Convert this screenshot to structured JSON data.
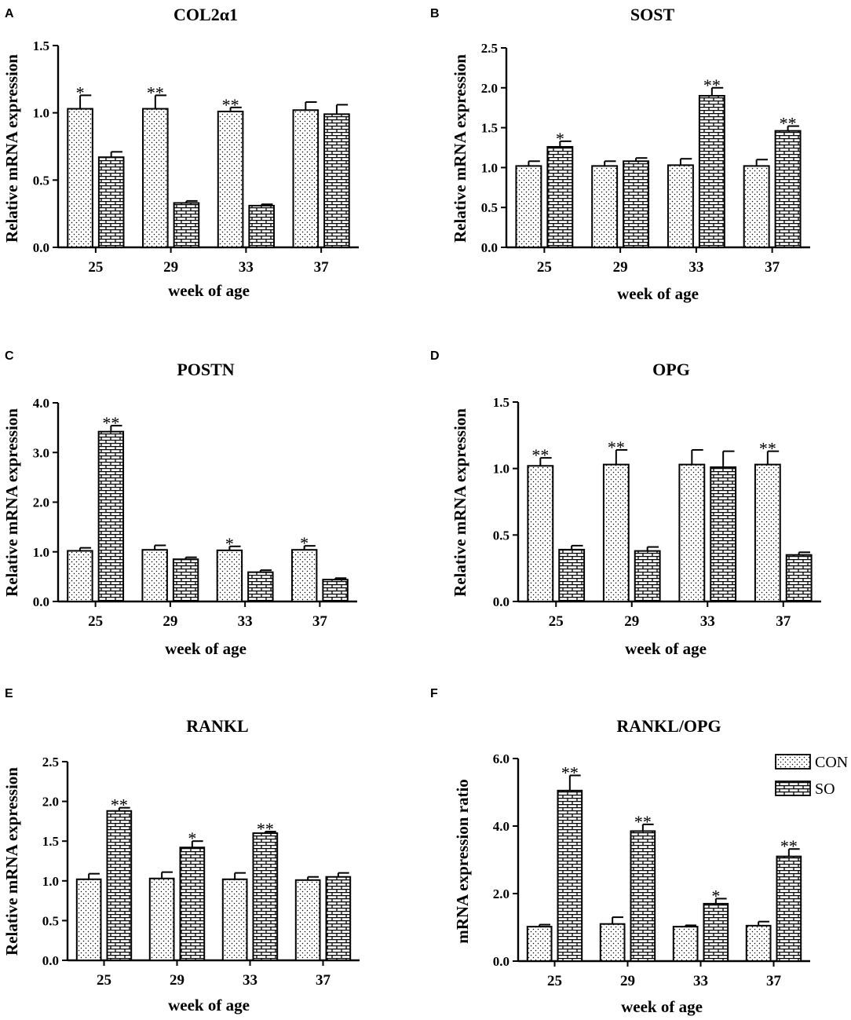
{
  "figure": {
    "legend": [
      {
        "key": "CON",
        "label": "CON",
        "pattern": "dots"
      },
      {
        "key": "SO",
        "label": "SO",
        "pattern": "bricks"
      }
    ],
    "colors": {
      "ink": "#000000",
      "bar_fill": "#ffffff"
    }
  },
  "chart_data": [
    {
      "panel": "A",
      "type": "bar",
      "title": "COL2α1",
      "xlabel": "week of age",
      "ylabel": "Relative mRNA expression",
      "categories": [
        "25",
        "29",
        "33",
        "37"
      ],
      "ylim": [
        0,
        1.5
      ],
      "yticks": [
        0,
        0.5,
        1.0,
        1.5
      ],
      "ytick_labels": [
        "0.0",
        "0.5",
        "1.0",
        "1.5"
      ],
      "series": [
        {
          "name": "CON",
          "values": [
            1.03,
            1.03,
            1.01,
            1.02
          ],
          "errors": [
            0.1,
            0.1,
            0.03,
            0.06
          ]
        },
        {
          "name": "SO",
          "values": [
            0.67,
            0.33,
            0.31,
            0.99
          ],
          "errors": [
            0.04,
            0.015,
            0.01,
            0.07
          ]
        }
      ],
      "significance": [
        "*",
        "**",
        "**",
        ""
      ]
    },
    {
      "panel": "B",
      "type": "bar",
      "title": "SOST",
      "xlabel": "week of age",
      "ylabel": "Relative mRNA expression",
      "categories": [
        "25",
        "29",
        "33",
        "37"
      ],
      "ylim": [
        0,
        2.5
      ],
      "yticks": [
        0,
        0.5,
        1.0,
        1.5,
        2.0,
        2.5
      ],
      "ytick_labels": [
        "0.0",
        "0.5",
        "1.0",
        "1.5",
        "2.0",
        "2.5"
      ],
      "series": [
        {
          "name": "CON",
          "values": [
            1.02,
            1.02,
            1.03,
            1.02
          ],
          "errors": [
            0.06,
            0.06,
            0.08,
            0.08
          ]
        },
        {
          "name": "SO",
          "values": [
            1.26,
            1.08,
            1.9,
            1.46
          ],
          "errors": [
            0.07,
            0.04,
            0.1,
            0.06
          ]
        }
      ],
      "significance": [
        "*",
        "",
        "**",
        "**"
      ]
    },
    {
      "panel": "C",
      "type": "bar",
      "title": "POSTN",
      "xlabel": "week of age",
      "ylabel": "Relative mRNA expression",
      "categories": [
        "25",
        "29",
        "33",
        "37"
      ],
      "ylim": [
        0,
        4.0
      ],
      "yticks": [
        0,
        1.0,
        2.0,
        3.0,
        4.0
      ],
      "ytick_labels": [
        "0.0",
        "1.0",
        "2.0",
        "3.0",
        "4.0"
      ],
      "series": [
        {
          "name": "CON",
          "values": [
            1.02,
            1.04,
            1.03,
            1.04
          ],
          "errors": [
            0.06,
            0.09,
            0.08,
            0.08
          ]
        },
        {
          "name": "SO",
          "values": [
            3.42,
            0.85,
            0.59,
            0.44
          ],
          "errors": [
            0.12,
            0.04,
            0.04,
            0.03
          ]
        }
      ],
      "significance": [
        "**",
        "",
        "*",
        "*"
      ]
    },
    {
      "panel": "D",
      "type": "bar",
      "title": "OPG",
      "xlabel": "week of age",
      "ylabel": "Relative mRNA expression",
      "categories": [
        "25",
        "29",
        "33",
        "37"
      ],
      "ylim": [
        0,
        1.5
      ],
      "yticks": [
        0,
        0.5,
        1.0,
        1.5
      ],
      "ytick_labels": [
        "0.0",
        "0.5",
        "1.0",
        "1.5"
      ],
      "series": [
        {
          "name": "CON",
          "values": [
            1.02,
            1.03,
            1.03,
            1.03
          ],
          "errors": [
            0.06,
            0.11,
            0.11,
            0.1
          ]
        },
        {
          "name": "SO",
          "values": [
            0.39,
            0.38,
            1.01,
            0.35
          ],
          "errors": [
            0.03,
            0.03,
            0.12,
            0.02
          ]
        }
      ],
      "significance": [
        "**",
        "**",
        "",
        "**"
      ]
    },
    {
      "panel": "E",
      "type": "bar",
      "title": "RANKL",
      "xlabel": "week of age",
      "ylabel": "Relative mRNA expression",
      "categories": [
        "25",
        "29",
        "33",
        "37"
      ],
      "ylim": [
        0,
        2.5
      ],
      "yticks": [
        0,
        0.5,
        1.0,
        1.5,
        2.0,
        2.5
      ],
      "ytick_labels": [
        "0.0",
        "0.5",
        "1.0",
        "1.5",
        "2.0",
        "2.5"
      ],
      "series": [
        {
          "name": "CON",
          "values": [
            1.02,
            1.03,
            1.02,
            1.01
          ],
          "errors": [
            0.07,
            0.08,
            0.08,
            0.04
          ]
        },
        {
          "name": "SO",
          "values": [
            1.88,
            1.42,
            1.6,
            1.05
          ],
          "errors": [
            0.04,
            0.08,
            0.02,
            0.05
          ]
        }
      ],
      "significance": [
        "**",
        "*",
        "**",
        ""
      ]
    },
    {
      "panel": "F",
      "type": "bar",
      "title": "RANKL/OPG",
      "xlabel": "week of age",
      "ylabel": "mRNA expression ratio",
      "categories": [
        "25",
        "29",
        "33",
        "37"
      ],
      "ylim": [
        0,
        6.0
      ],
      "yticks": [
        0,
        2.0,
        4.0,
        6.0
      ],
      "ytick_labels": [
        "0.0",
        "2.0",
        "4.0",
        "6.0"
      ],
      "series": [
        {
          "name": "CON",
          "values": [
            1.02,
            1.1,
            1.02,
            1.05
          ],
          "errors": [
            0.06,
            0.2,
            0.04,
            0.12
          ]
        },
        {
          "name": "SO",
          "values": [
            5.05,
            3.85,
            1.7,
            3.1
          ],
          "errors": [
            0.45,
            0.2,
            0.15,
            0.22
          ]
        }
      ],
      "significance": [
        "**",
        "**",
        "*",
        "**"
      ]
    }
  ]
}
